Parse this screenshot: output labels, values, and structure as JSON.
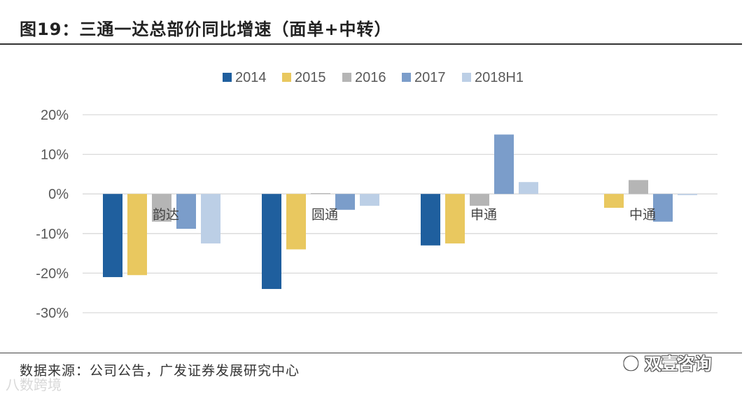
{
  "title": "图19：三通一达总部价同比增速（面单+中转）",
  "source": "数据来源：公司公告，广发证券发展研究中心",
  "watermarks": {
    "left": "八数跨境",
    "right": "双壹咨询",
    "right_icon": "wechat-icon"
  },
  "colors": {
    "2014": "#1f5f9e",
    "2015": "#e9c85f",
    "2016": "#b5b5b5",
    "2017": "#7b9dca",
    "2018H1": "#bccfe6",
    "grid": "#d9d9d9",
    "axis_text": "#595959"
  },
  "chart_data": {
    "type": "bar",
    "title": "三通一达总部价同比增速（面单+中转）",
    "categories": [
      "韵达",
      "圆通",
      "申通",
      "中通"
    ],
    "series": [
      {
        "name": "2014",
        "values": [
          -21,
          -24,
          -13,
          null
        ]
      },
      {
        "name": "2015",
        "values": [
          -20.5,
          -14,
          -12.5,
          -3.5
        ]
      },
      {
        "name": "2016",
        "values": [
          -7,
          0.2,
          -3,
          3.5
        ]
      },
      {
        "name": "2017",
        "values": [
          -8.8,
          -4,
          15,
          -7
        ]
      },
      {
        "name": "2018H1",
        "values": [
          -12.5,
          -3,
          3,
          -0.3
        ]
      }
    ],
    "yticks": [
      "20%",
      "10%",
      "0%",
      "-10%",
      "-20%",
      "-30%"
    ],
    "ylim": [
      -30,
      20
    ],
    "xlabel": "",
    "ylabel": "",
    "legend_position": "top-center",
    "grid": true
  }
}
